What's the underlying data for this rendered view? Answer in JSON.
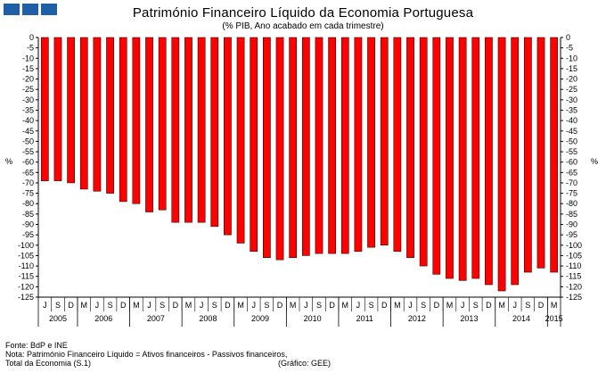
{
  "header": {
    "title": "Património Financeiro Líquido da Economia Portuguesa",
    "subtitle": "(% PIB, Ano acabado em cada trimestre)"
  },
  "footer": {
    "source": "Fonte: BdP e INE",
    "note1": "Nota: Património Financeiro Líquido = Ativos financeiros - Passivos financeiros,",
    "note2": "Total da Economia (S.1)",
    "credit": "(Gráfico: GEE)"
  },
  "colors": {
    "bar": "#ff0000",
    "bar_edge": "#000000",
    "logo": "#1f5fa8"
  },
  "chart_data": {
    "type": "bar",
    "ylabel": "%",
    "ylim": [
      -125,
      0
    ],
    "ytick_step": 5,
    "grid": false,
    "y2_axis": true,
    "quarter_labels": [
      "J",
      "S",
      "D",
      "M",
      "J",
      "S",
      "D",
      "M",
      "J",
      "S",
      "D",
      "M",
      "J",
      "S",
      "D",
      "M",
      "J",
      "S",
      "D",
      "M",
      "J",
      "S",
      "D",
      "M",
      "J",
      "S",
      "D",
      "M",
      "J",
      "S",
      "D",
      "M",
      "J",
      "S",
      "D",
      "M",
      "J",
      "S",
      "D",
      "M"
    ],
    "years": [
      {
        "label": "2005",
        "span": 3
      },
      {
        "label": "2006",
        "span": 4
      },
      {
        "label": "2007",
        "span": 4
      },
      {
        "label": "2008",
        "span": 4
      },
      {
        "label": "2009",
        "span": 4
      },
      {
        "label": "2010",
        "span": 4
      },
      {
        "label": "2011",
        "span": 4
      },
      {
        "label": "2012",
        "span": 4
      },
      {
        "label": "2013",
        "span": 4
      },
      {
        "label": "2014",
        "span": 4
      },
      {
        "label": "2015",
        "span": 1
      }
    ],
    "values": [
      -69,
      -69,
      -70,
      -73,
      -74,
      -75,
      -79,
      -80,
      -84,
      -83,
      -89,
      -89,
      -89,
      -91,
      -95,
      -99,
      -103,
      -106,
      -107,
      -106,
      -105,
      -104,
      -104,
      -104,
      -103,
      -101,
      -100,
      -103,
      -106,
      -110,
      -114,
      -116,
      -117,
      -116,
      -119,
      -122,
      -119,
      -113,
      -111,
      -113
    ]
  }
}
